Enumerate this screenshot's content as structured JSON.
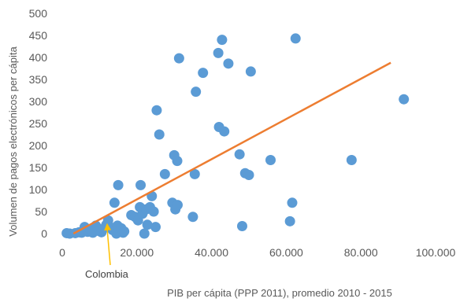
{
  "chart_data": {
    "type": "scatter",
    "xlabel": "PIB per cápita (PPP 2011), promedio 2010 - 2015",
    "ylabel": "Volumen de pagos electrónicos per cápita",
    "xlim": [
      0,
      100000
    ],
    "ylim": [
      0,
      500
    ],
    "x_ticks": [
      0,
      20000,
      40000,
      60000,
      80000,
      100000
    ],
    "x_tick_labels": [
      "0",
      "20.000",
      "40.000",
      "60.000",
      "80.000",
      "100.000"
    ],
    "y_ticks": [
      0,
      50,
      100,
      150,
      200,
      250,
      300,
      350,
      400,
      450,
      500
    ],
    "y_tick_labels": [
      "0",
      "50",
      "100",
      "150",
      "200",
      "250",
      "300",
      "350",
      "400",
      "450",
      "500"
    ],
    "grid": false,
    "legend": false,
    "colors": {
      "points": "#5b9bd5",
      "trendline": "#ed7d31",
      "annotation_arrow": "#ffc000"
    },
    "points": [
      {
        "x": 1200,
        "y": 1
      },
      {
        "x": 2000,
        "y": 0
      },
      {
        "x": 3500,
        "y": 1
      },
      {
        "x": 4500,
        "y": 3
      },
      {
        "x": 5200,
        "y": 2
      },
      {
        "x": 6000,
        "y": 15
      },
      {
        "x": 6800,
        "y": 4
      },
      {
        "x": 7500,
        "y": 10
      },
      {
        "x": 8200,
        "y": 2
      },
      {
        "x": 9000,
        "y": 18
      },
      {
        "x": 9800,
        "y": 6
      },
      {
        "x": 10500,
        "y": 3
      },
      {
        "x": 11000,
        "y": 11
      },
      {
        "x": 11800,
        "y": 20
      },
      {
        "x": 12300,
        "y": 30
      },
      {
        "x": 12800,
        "y": 15
      },
      {
        "x": 13500,
        "y": 8
      },
      {
        "x": 14000,
        "y": 70
      },
      {
        "x": 14500,
        "y": 0
      },
      {
        "x": 14800,
        "y": 18
      },
      {
        "x": 15000,
        "y": 110
      },
      {
        "x": 15800,
        "y": 12
      },
      {
        "x": 16300,
        "y": 2
      },
      {
        "x": 16600,
        "y": 5
      },
      {
        "x": 18500,
        "y": 42
      },
      {
        "x": 19500,
        "y": 38
      },
      {
        "x": 20300,
        "y": 30
      },
      {
        "x": 20800,
        "y": 60
      },
      {
        "x": 21000,
        "y": 110
      },
      {
        "x": 21500,
        "y": 45
      },
      {
        "x": 22000,
        "y": 0
      },
      {
        "x": 22500,
        "y": 55
      },
      {
        "x": 22800,
        "y": 20
      },
      {
        "x": 23500,
        "y": 60
      },
      {
        "x": 24000,
        "y": 85
      },
      {
        "x": 24500,
        "y": 50
      },
      {
        "x": 25000,
        "y": 15
      },
      {
        "x": 25300,
        "y": 280
      },
      {
        "x": 26000,
        "y": 225
      },
      {
        "x": 27500,
        "y": 135
      },
      {
        "x": 29500,
        "y": 70
      },
      {
        "x": 30000,
        "y": 178
      },
      {
        "x": 30300,
        "y": 55
      },
      {
        "x": 30800,
        "y": 165
      },
      {
        "x": 30900,
        "y": 65
      },
      {
        "x": 31300,
        "y": 398
      },
      {
        "x": 35000,
        "y": 38
      },
      {
        "x": 35500,
        "y": 135
      },
      {
        "x": 35800,
        "y": 322
      },
      {
        "x": 37700,
        "y": 365
      },
      {
        "x": 41800,
        "y": 410
      },
      {
        "x": 42000,
        "y": 242
      },
      {
        "x": 42800,
        "y": 440
      },
      {
        "x": 43400,
        "y": 232
      },
      {
        "x": 44500,
        "y": 386
      },
      {
        "x": 47500,
        "y": 180
      },
      {
        "x": 48200,
        "y": 17
      },
      {
        "x": 49000,
        "y": 137
      },
      {
        "x": 50000,
        "y": 133
      },
      {
        "x": 50500,
        "y": 368
      },
      {
        "x": 55800,
        "y": 167
      },
      {
        "x": 61000,
        "y": 28
      },
      {
        "x": 61600,
        "y": 70
      },
      {
        "x": 62500,
        "y": 443
      },
      {
        "x": 77500,
        "y": 167
      },
      {
        "x": 91500,
        "y": 305
      }
    ],
    "trendline": {
      "type": "linear",
      "x": [
        3000,
        88000
      ],
      "y": [
        0,
        388
      ]
    },
    "annotations": [
      {
        "label": "Colombia",
        "point": {
          "x": 11800,
          "y": 20
        }
      }
    ]
  }
}
